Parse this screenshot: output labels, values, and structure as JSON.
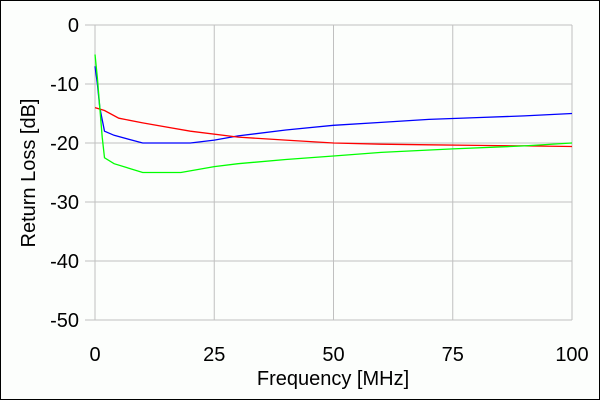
{
  "chart_data": {
    "type": "line",
    "title": "",
    "xlabel": "Frequency [MHz]",
    "ylabel": "Return Loss [dB]",
    "xlim": [
      0,
      100
    ],
    "ylim": [
      -50,
      0
    ],
    "xticks": [
      0,
      25,
      50,
      75,
      100
    ],
    "yticks": [
      0,
      -10,
      -20,
      -30,
      -40,
      -50
    ],
    "xtick_labels": [
      "0",
      "25",
      "50",
      "75",
      "100"
    ],
    "ytick_labels": [
      "0",
      "-10",
      "-20",
      "-30",
      "-40",
      "-50"
    ],
    "grid": true,
    "series": [
      {
        "name": "blue",
        "color": "#0000ff",
        "x": [
          0,
          0.5,
          1,
          2,
          4,
          10,
          20,
          25,
          30,
          40,
          50,
          60,
          70,
          80,
          90,
          100
        ],
        "y": [
          -7,
          -10,
          -14,
          -18,
          -18.7,
          -20,
          -20,
          -19.5,
          -18.8,
          -17.8,
          -17,
          -16.5,
          -16,
          -15.7,
          -15.4,
          -15
        ]
      },
      {
        "name": "red",
        "color": "#ff0000",
        "x": [
          0,
          2,
          5,
          10,
          20,
          30,
          40,
          50,
          60,
          70,
          80,
          90,
          100
        ],
        "y": [
          -14,
          -14.5,
          -15.8,
          -16.6,
          -18,
          -19,
          -19.5,
          -20,
          -20.2,
          -20.3,
          -20.4,
          -20.5,
          -20.6
        ]
      },
      {
        "name": "green",
        "color": "#00ff00",
        "x": [
          0,
          0.5,
          1,
          1.5,
          2,
          4,
          10,
          18,
          25,
          30,
          40,
          50,
          60,
          75,
          90,
          100
        ],
        "y": [
          -5,
          -9,
          -14,
          -19,
          -22.5,
          -23.5,
          -25,
          -25,
          -24,
          -23.5,
          -22.8,
          -22.2,
          -21.6,
          -21,
          -20.5,
          -20
        ]
      }
    ]
  }
}
